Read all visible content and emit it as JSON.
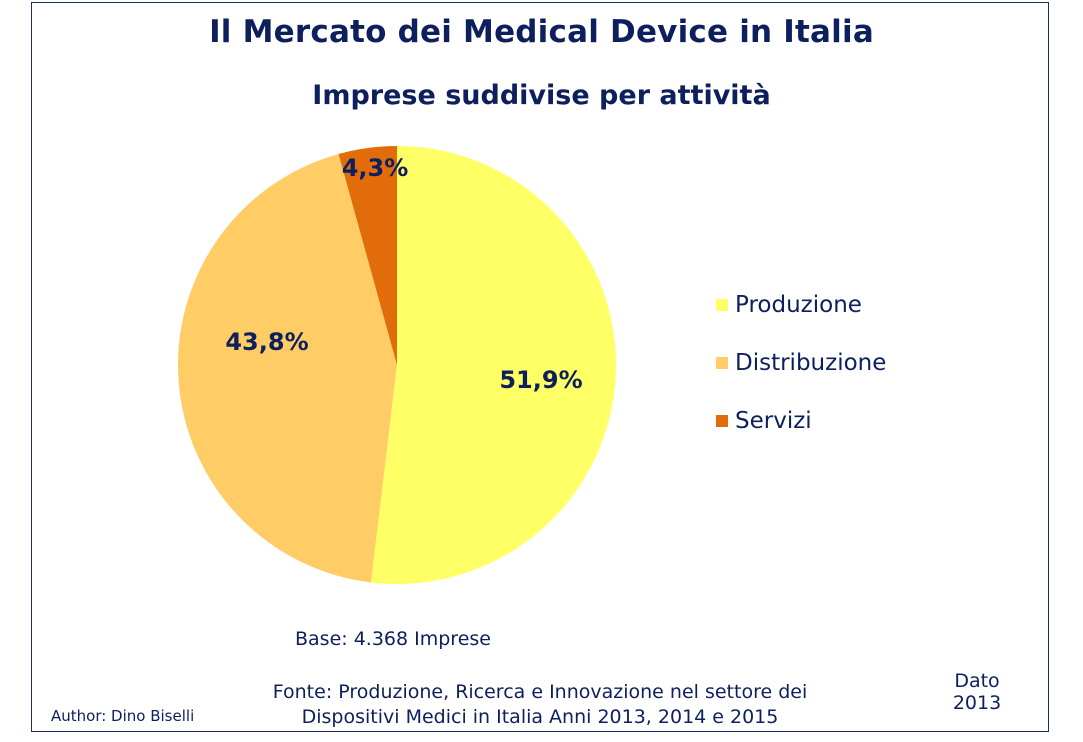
{
  "chart_data": {
    "type": "pie",
    "title": "Il Mercato dei Medical Device in Italia",
    "subtitle": "Imprese suddivise per attività",
    "slices": [
      {
        "label": "Produzione",
        "value": 51.9,
        "display": "51,9%",
        "color": "#ffff66"
      },
      {
        "label": "Distribuzione",
        "value": 43.8,
        "display": "43,8%",
        "color": "#ffcc66"
      },
      {
        "label": "Servizi",
        "value": 4.3,
        "display": "4,3%",
        "color": "#e36c0a"
      }
    ],
    "legend_position": "right"
  },
  "footer": {
    "base": "Base: 4.368 Imprese",
    "fonte_line1": "Fonte: Produzione, Ricerca e Innovazione nel settore dei",
    "fonte_line2": "Dispositivi Medici in Italia  Anni 2013, 2014 e 2015",
    "author": "Author: Dino Biselli",
    "dato_line1": "Dato",
    "dato_line2": "2013"
  }
}
